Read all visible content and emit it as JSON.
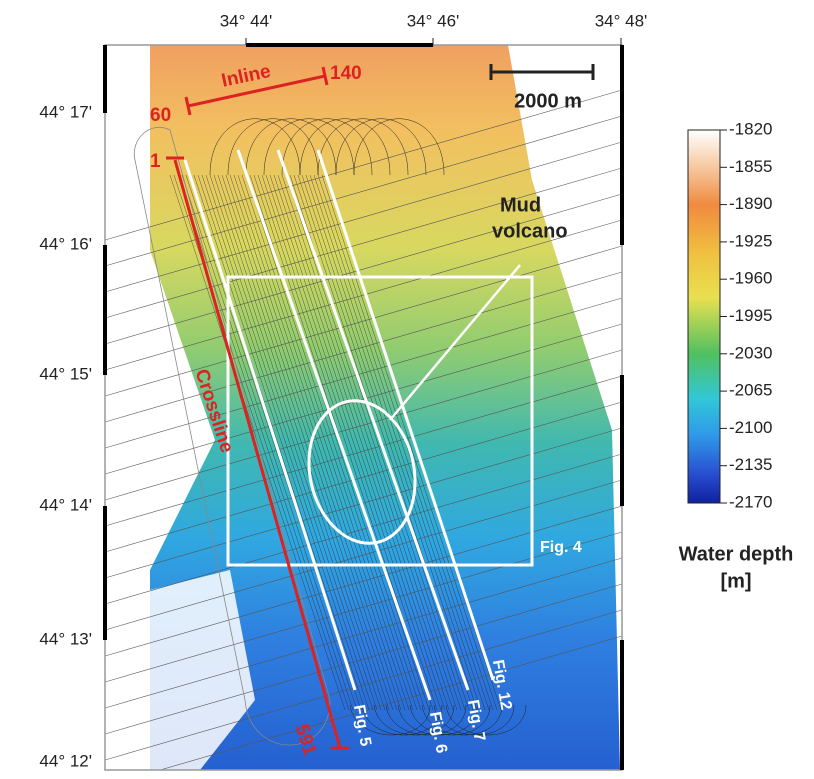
{
  "map": {
    "lon_labels": [
      "34° 44'",
      "34° 46'",
      "34° 48'"
    ],
    "lat_labels": [
      "44° 17'",
      "44° 16'",
      "44° 15'",
      "44° 14'",
      "44° 13'",
      "44° 12'"
    ],
    "inline": {
      "label": "Inline",
      "start": 60,
      "end": 140
    },
    "crossline": {
      "label": "Crossline",
      "start": 1,
      "end": 591
    },
    "scale_bar": "2000 m",
    "annotation": [
      "Mud",
      "volcano"
    ],
    "box_label": "Fig. 4",
    "profiles": [
      "Fig. 5",
      "Fig. 6",
      "Fig. 7",
      "Fig. 12"
    ]
  },
  "colorbar": {
    "range": [
      -1820,
      -2170
    ],
    "ticks": [
      -1820,
      -1855,
      -1890,
      -1925,
      -1960,
      -1995,
      -2030,
      -2065,
      -2100,
      -2135,
      -2170
    ],
    "title": [
      "Water depth",
      "[m]"
    ]
  }
}
